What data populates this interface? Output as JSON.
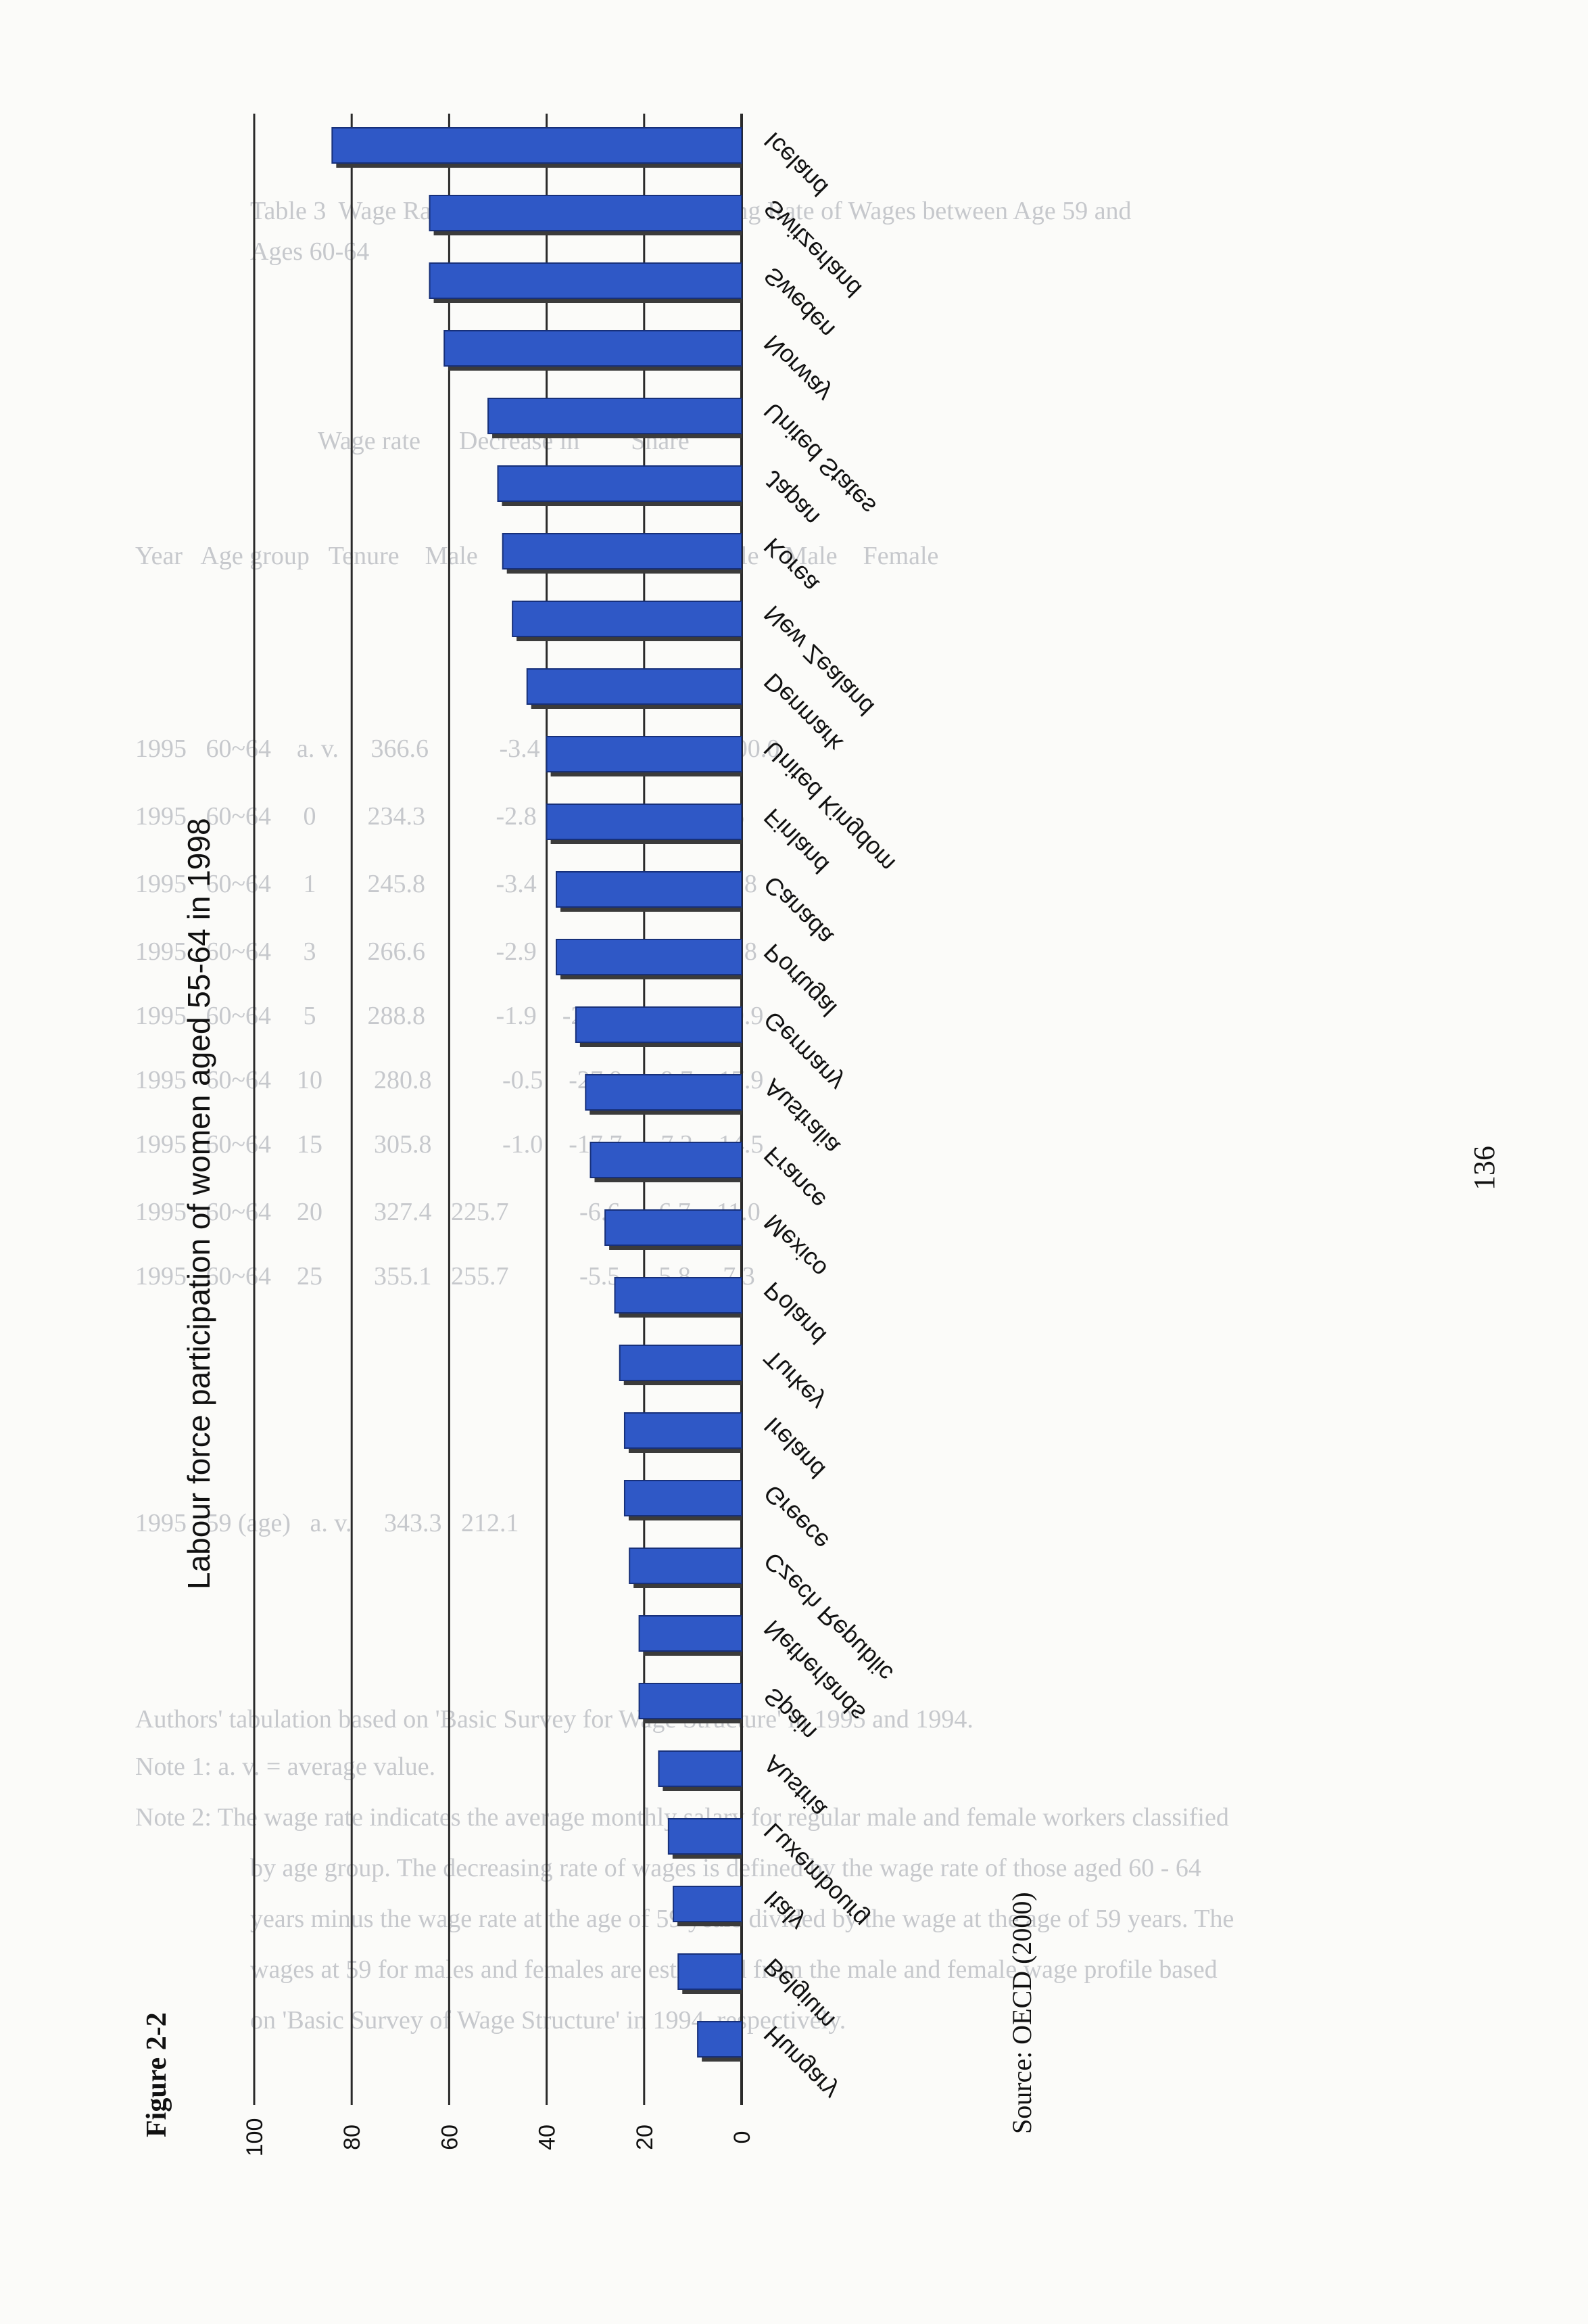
{
  "figure_label": "Figure 2-2",
  "source_note": "Source: OECD (2000)",
  "page_number": "136",
  "colors": {
    "bar_fill": "#2f58c6",
    "bar_edge": "#17307a",
    "bar_shadow": "#3b3b3b",
    "gridline": "#2a2a2a",
    "text": "#111111"
  },
  "chart_data": {
    "type": "bar",
    "orientation": "horizontal",
    "title": "Labour force participation of women aged 55-64 in 1998",
    "xlabel": "",
    "ylabel": "",
    "xlim": [
      0,
      100
    ],
    "ticks": [
      {
        "value": 0,
        "label": "0"
      },
      {
        "value": 20,
        "label": "20"
      },
      {
        "value": 40,
        "label": "40"
      },
      {
        "value": 60,
        "label": "60"
      },
      {
        "value": 80,
        "label": "80"
      },
      {
        "value": 100,
        "label": "100"
      }
    ],
    "grid": true,
    "legend": "none",
    "categories": [
      "Iceland",
      "Switzerland",
      "Sweden",
      "Norway",
      "United States",
      "Japan",
      "Korea",
      "New Zealand",
      "Denmark",
      "United Kingdom",
      "Finland",
      "Canada",
      "Portugal",
      "Germany",
      "Australia",
      "France",
      "Mexico",
      "Poland",
      "Turkey",
      "Ireland",
      "Greece",
      "Czech Republic",
      "Netherlands",
      "Spain",
      "Austria",
      "Luxembourg",
      "Italy",
      "Belgium",
      "Hungary"
    ],
    "values": [
      84,
      64,
      64,
      61,
      52,
      50,
      49,
      47,
      44,
      40,
      40,
      38,
      38,
      34,
      32,
      31,
      28,
      26,
      25,
      24,
      24,
      23,
      21,
      21,
      17,
      15,
      14,
      13,
      9
    ]
  }
}
